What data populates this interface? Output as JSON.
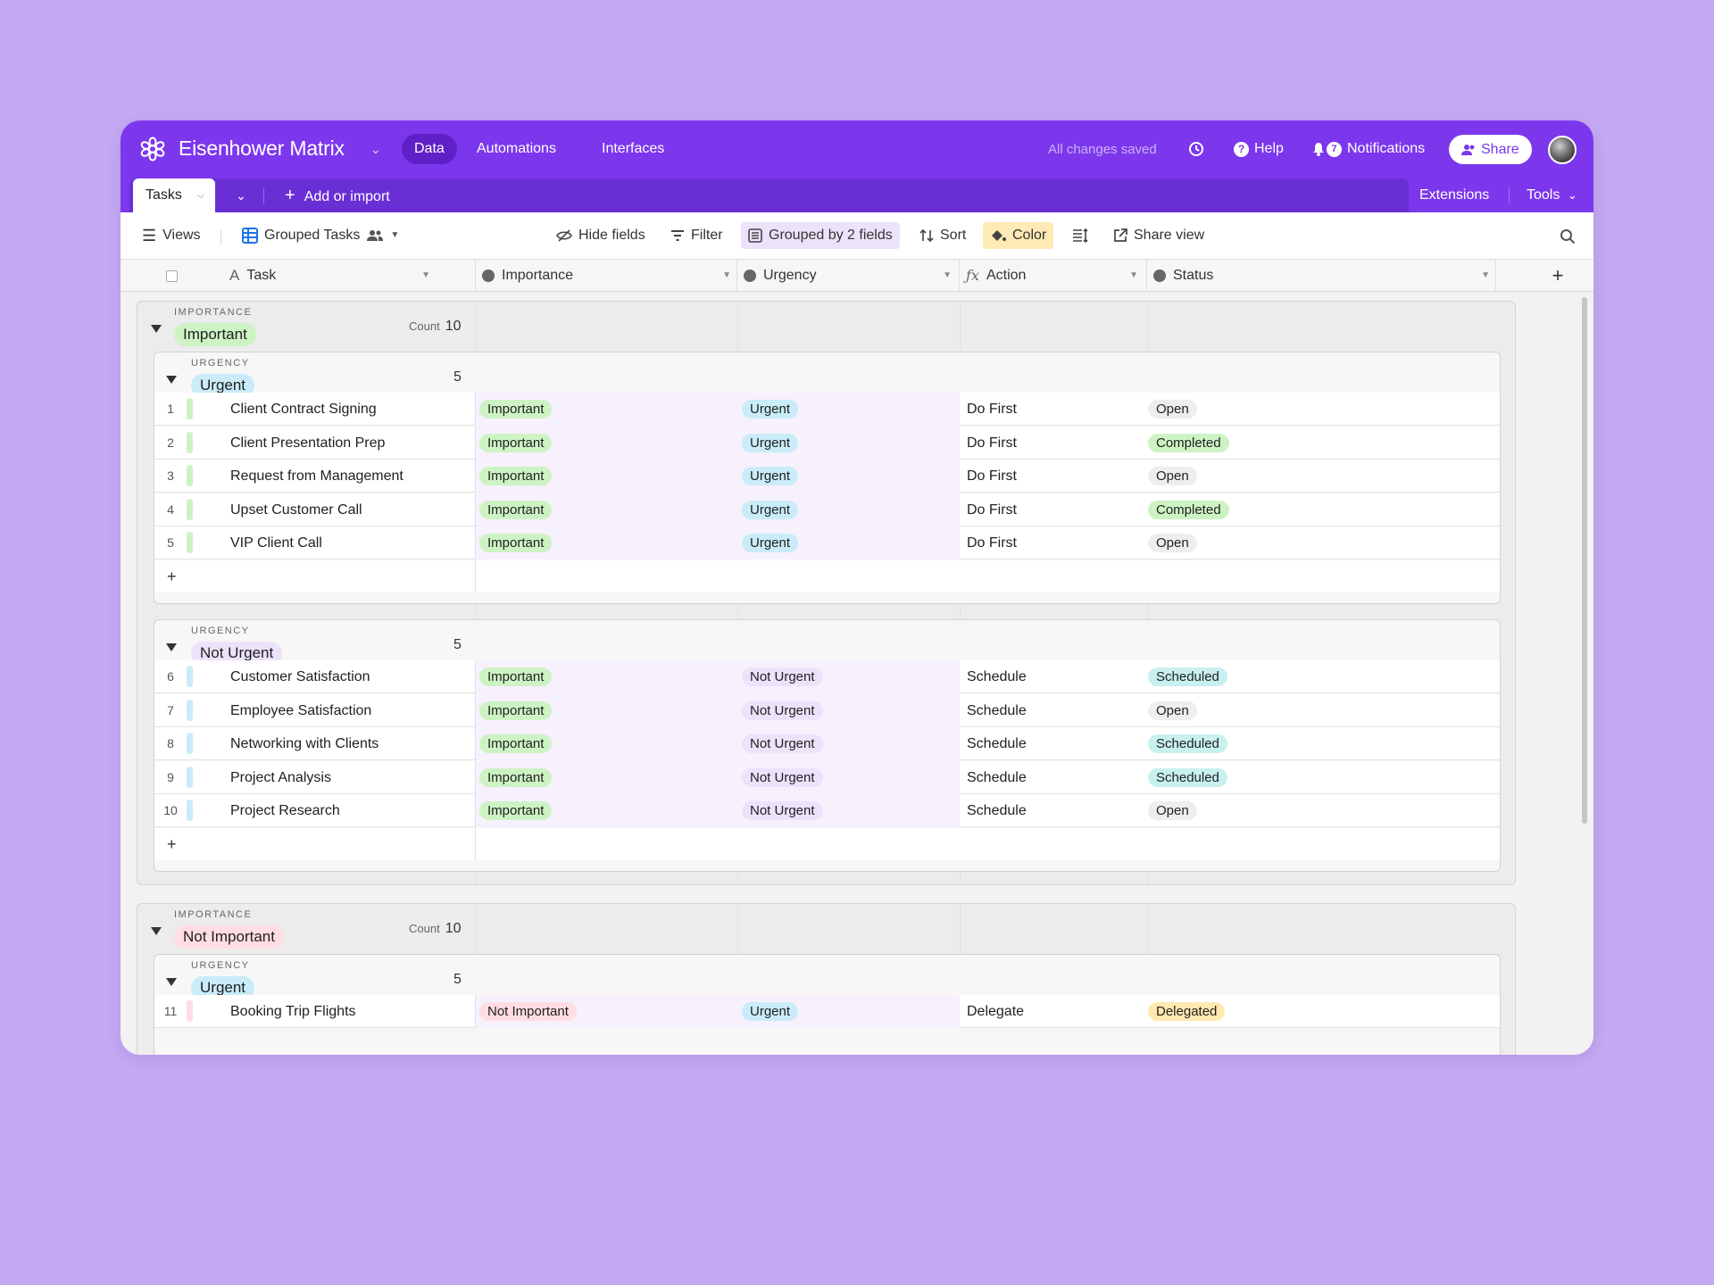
{
  "app": {
    "base_title": "Eisenhower Matrix",
    "tabs": [
      "Data",
      "Automations",
      "Interfaces"
    ],
    "saved_status": "All changes saved",
    "help": "Help",
    "notifications": "Notifications",
    "notification_count": "7",
    "share": "Share"
  },
  "tablebar": {
    "table_name": "Tasks",
    "add_import": "Add or import",
    "extensions": "Extensions",
    "tools": "Tools"
  },
  "viewbar": {
    "views": "Views",
    "view_name": "Grouped Tasks",
    "hide_fields": "Hide fields",
    "filter": "Filter",
    "grouped": "Grouped by 2 fields",
    "sort": "Sort",
    "color": "Color",
    "share_view": "Share view"
  },
  "columns": [
    "Task",
    "Importance",
    "Urgency",
    "Action",
    "Status"
  ],
  "colors": {
    "brand": "#7c37ed",
    "important": "#cdf3c4",
    "not_important": "#ffdde2",
    "urgent": "#c9ecf8",
    "not_urgent": "#ece3fb",
    "open": "#eeeeee",
    "completed": "#cdf3c4",
    "scheduled": "#c8f0ef",
    "delegated": "#ffe9b0"
  },
  "groups": [
    {
      "field_label": "IMPORTANCE",
      "value": "Important",
      "count_label": "Count",
      "count": "10",
      "subgroups": [
        {
          "field_label": "URGENCY",
          "value": "Urgent",
          "count": "5",
          "rows": [
            {
              "num": "1",
              "task": "Client Contract Signing",
              "importance": "Important",
              "urgency": "Urgent",
              "action": "Do First",
              "status": "Open"
            },
            {
              "num": "2",
              "task": "Client Presentation Prep",
              "importance": "Important",
              "urgency": "Urgent",
              "action": "Do First",
              "status": "Completed"
            },
            {
              "num": "3",
              "task": "Request from Management",
              "importance": "Important",
              "urgency": "Urgent",
              "action": "Do First",
              "status": "Open"
            },
            {
              "num": "4",
              "task": "Upset Customer Call",
              "importance": "Important",
              "urgency": "Urgent",
              "action": "Do First",
              "status": "Completed"
            },
            {
              "num": "5",
              "task": "VIP Client Call",
              "importance": "Important",
              "urgency": "Urgent",
              "action": "Do First",
              "status": "Open"
            }
          ]
        },
        {
          "field_label": "URGENCY",
          "value": "Not Urgent",
          "count": "5",
          "rows": [
            {
              "num": "6",
              "task": "Customer Satisfaction",
              "importance": "Important",
              "urgency": "Not Urgent",
              "action": "Schedule",
              "status": "Scheduled"
            },
            {
              "num": "7",
              "task": "Employee Satisfaction",
              "importance": "Important",
              "urgency": "Not Urgent",
              "action": "Schedule",
              "status": "Open"
            },
            {
              "num": "8",
              "task": "Networking with Clients",
              "importance": "Important",
              "urgency": "Not Urgent",
              "action": "Schedule",
              "status": "Scheduled"
            },
            {
              "num": "9",
              "task": "Project Analysis",
              "importance": "Important",
              "urgency": "Not Urgent",
              "action": "Schedule",
              "status": "Scheduled"
            },
            {
              "num": "10",
              "task": "Project Research",
              "importance": "Important",
              "urgency": "Not Urgent",
              "action": "Schedule",
              "status": "Open"
            }
          ]
        }
      ]
    },
    {
      "field_label": "IMPORTANCE",
      "value": "Not Important",
      "count_label": "Count",
      "count": "10",
      "subgroups": [
        {
          "field_label": "URGENCY",
          "value": "Urgent",
          "count": "5",
          "rows": [
            {
              "num": "11",
              "task": "Booking Trip Flights",
              "importance": "Not Important",
              "urgency": "Urgent",
              "action": "Delegate",
              "status": "Delegated"
            }
          ]
        }
      ]
    }
  ]
}
